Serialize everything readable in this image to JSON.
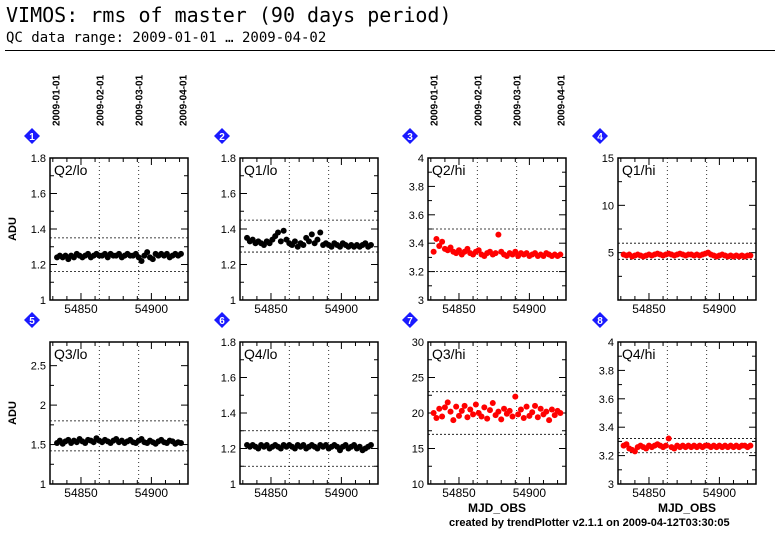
{
  "header": {
    "title": "VIMOS: rms of master (90 days period)",
    "subtitle": "QC data range: 2009-01-01 … 2009-04-02",
    "footer": "created by trendPlotter v2.1.1 on 2009-04-12T03:30:05"
  },
  "colors": {
    "series_lo": "#000000",
    "series_hi": "#ff0000",
    "badge": "#1a1aff"
  },
  "date_axis": {
    "labels": [
      "2009-01-01",
      "2009-02-01",
      "2009-03-01",
      "2009-04-01"
    ],
    "mjd": [
      54832,
      54863,
      54891,
      54922
    ]
  },
  "chart_data": [
    {
      "type": "scatter",
      "panel": "1",
      "label": "Q2/lo",
      "ylabel": "ADU",
      "xlabel": "",
      "xlim": [
        54828,
        54926
      ],
      "ylim": [
        1,
        1.8
      ],
      "xticks": [
        54850,
        54900
      ],
      "yticks": [
        1,
        1.2,
        1.4,
        1.6,
        1.8
      ],
      "yticklabels": [
        "1",
        "1.2",
        "1.4",
        "1.6",
        "1.8"
      ],
      "reflines": [
        1.16,
        1.35
      ],
      "color": "black",
      "x": [
        54833,
        54835,
        54837,
        54839,
        54841,
        54843,
        54845,
        54847,
        54849,
        54851,
        54853,
        54855,
        54857,
        54859,
        54861,
        54863,
        54865,
        54867,
        54869,
        54871,
        54873,
        54875,
        54877,
        54879,
        54881,
        54883,
        54885,
        54887,
        54889,
        54891,
        54893,
        54895,
        54897,
        54899,
        54901,
        54903,
        54905,
        54907,
        54909,
        54911,
        54913,
        54915,
        54917,
        54919,
        54921
      ],
      "y": [
        1.24,
        1.25,
        1.24,
        1.25,
        1.23,
        1.25,
        1.24,
        1.26,
        1.25,
        1.24,
        1.25,
        1.26,
        1.24,
        1.25,
        1.26,
        1.25,
        1.25,
        1.26,
        1.24,
        1.26,
        1.25,
        1.25,
        1.26,
        1.24,
        1.25,
        1.26,
        1.25,
        1.25,
        1.26,
        1.24,
        1.22,
        1.25,
        1.27,
        1.24,
        1.23,
        1.26,
        1.25,
        1.26,
        1.25,
        1.26,
        1.24,
        1.25,
        1.26,
        1.25,
        1.26
      ]
    },
    {
      "type": "scatter",
      "panel": "2",
      "label": "Q1/lo",
      "ylabel": "",
      "xlabel": "",
      "xlim": [
        54828,
        54926
      ],
      "ylim": [
        1,
        1.8
      ],
      "xticks": [
        54850,
        54900
      ],
      "yticks": [
        1,
        1.2,
        1.4,
        1.6,
        1.8
      ],
      "yticklabels": [
        "1",
        "1.2",
        "1.4",
        "1.6",
        "1.8"
      ],
      "reflines": [
        1.27,
        1.45
      ],
      "color": "black",
      "x": [
        54833,
        54835,
        54837,
        54839,
        54841,
        54843,
        54845,
        54847,
        54849,
        54851,
        54853,
        54855,
        54857,
        54859,
        54861,
        54863,
        54865,
        54867,
        54869,
        54871,
        54873,
        54875,
        54877,
        54879,
        54881,
        54883,
        54885,
        54887,
        54889,
        54891,
        54893,
        54895,
        54897,
        54899,
        54901,
        54903,
        54905,
        54907,
        54909,
        54911,
        54913,
        54915,
        54917,
        54919,
        54921
      ],
      "y": [
        1.35,
        1.33,
        1.34,
        1.32,
        1.33,
        1.32,
        1.31,
        1.33,
        1.32,
        1.34,
        1.36,
        1.38,
        1.33,
        1.39,
        1.34,
        1.32,
        1.31,
        1.33,
        1.3,
        1.32,
        1.31,
        1.35,
        1.33,
        1.37,
        1.32,
        1.34,
        1.38,
        1.31,
        1.32,
        1.31,
        1.3,
        1.32,
        1.31,
        1.3,
        1.32,
        1.31,
        1.3,
        1.31,
        1.3,
        1.31,
        1.3,
        1.31,
        1.32,
        1.3,
        1.31
      ]
    },
    {
      "type": "scatter",
      "panel": "3",
      "label": "Q2/hi",
      "ylabel": "",
      "xlabel": "",
      "xlim": [
        54828,
        54926
      ],
      "ylim": [
        3,
        4
      ],
      "xticks": [
        54850,
        54900
      ],
      "yticks": [
        3,
        3.2,
        3.4,
        3.6,
        3.8,
        4
      ],
      "yticklabels": [
        "3",
        "3.2",
        "3.4",
        "3.6",
        "3.8",
        "4"
      ],
      "reflines": [
        3.2,
        3.5
      ],
      "color": "red",
      "x": [
        54832,
        54834,
        54836,
        54838,
        54840,
        54842,
        54844,
        54846,
        54848,
        54850,
        54852,
        54854,
        54856,
        54858,
        54860,
        54862,
        54864,
        54866,
        54868,
        54870,
        54872,
        54874,
        54876,
        54878,
        54880,
        54882,
        54884,
        54886,
        54888,
        54890,
        54892,
        54894,
        54896,
        54898,
        54900,
        54902,
        54904,
        54906,
        54908,
        54910,
        54912,
        54914,
        54916,
        54918,
        54920,
        54922
      ],
      "y": [
        3.34,
        3.43,
        3.38,
        3.41,
        3.36,
        3.35,
        3.37,
        3.34,
        3.33,
        3.35,
        3.32,
        3.34,
        3.36,
        3.33,
        3.32,
        3.34,
        3.35,
        3.32,
        3.31,
        3.33,
        3.34,
        3.32,
        3.33,
        3.46,
        3.34,
        3.32,
        3.31,
        3.33,
        3.32,
        3.34,
        3.31,
        3.33,
        3.32,
        3.33,
        3.31,
        3.32,
        3.33,
        3.31,
        3.32,
        3.31,
        3.33,
        3.32,
        3.31,
        3.32,
        3.31,
        3.32
      ]
    },
    {
      "type": "scatter",
      "panel": "4",
      "label": "Q1/hi",
      "ylabel": "",
      "xlabel": "",
      "xlim": [
        54828,
        54926
      ],
      "ylim": [
        0,
        15
      ],
      "xticks": [
        54850,
        54900
      ],
      "yticks": [
        0,
        5,
        10,
        15
      ],
      "yticklabels": [
        "",
        "5",
        "10",
        "15"
      ],
      "reflines": [
        4.3,
        6.0
      ],
      "color": "red",
      "x": [
        54832,
        54834,
        54836,
        54838,
        54840,
        54842,
        54844,
        54846,
        54848,
        54850,
        54852,
        54854,
        54856,
        54858,
        54860,
        54862,
        54864,
        54866,
        54868,
        54870,
        54872,
        54874,
        54876,
        54878,
        54880,
        54882,
        54884,
        54886,
        54888,
        54890,
        54892,
        54894,
        54896,
        54898,
        54900,
        54902,
        54904,
        54906,
        54908,
        54910,
        54912,
        54914,
        54916,
        54918,
        54920,
        54922
      ],
      "y": [
        4.8,
        4.7,
        4.8,
        4.6,
        4.7,
        4.8,
        4.7,
        4.6,
        4.7,
        4.8,
        4.7,
        4.8,
        4.9,
        4.8,
        4.7,
        4.8,
        4.9,
        4.8,
        4.7,
        4.8,
        4.9,
        4.8,
        4.7,
        4.8,
        4.8,
        4.7,
        4.8,
        4.7,
        4.8,
        4.9,
        5.0,
        4.8,
        4.7,
        4.6,
        4.7,
        4.8,
        4.7,
        4.6,
        4.7,
        4.6,
        4.7,
        4.6,
        4.7,
        4.6,
        4.7,
        4.7
      ]
    },
    {
      "type": "scatter",
      "panel": "5",
      "label": "Q3/lo",
      "ylabel": "ADU",
      "xlabel": "",
      "xlim": [
        54828,
        54926
      ],
      "ylim": [
        1,
        2.8
      ],
      "xticks": [
        54850,
        54900
      ],
      "yticks": [
        1,
        1.5,
        2,
        2.5
      ],
      "yticklabels": [
        "1",
        "1.5",
        "2",
        "2.5"
      ],
      "reflines": [
        1.42,
        1.8
      ],
      "color": "black",
      "x": [
        54833,
        54835,
        54837,
        54839,
        54841,
        54843,
        54845,
        54847,
        54849,
        54851,
        54853,
        54855,
        54857,
        54859,
        54861,
        54863,
        54865,
        54867,
        54869,
        54871,
        54873,
        54875,
        54877,
        54879,
        54881,
        54883,
        54885,
        54887,
        54889,
        54891,
        54893,
        54895,
        54897,
        54899,
        54901,
        54903,
        54905,
        54907,
        54909,
        54911,
        54913,
        54915,
        54917,
        54919,
        54921
      ],
      "y": [
        1.52,
        1.55,
        1.51,
        1.54,
        1.56,
        1.52,
        1.55,
        1.53,
        1.57,
        1.54,
        1.52,
        1.56,
        1.55,
        1.53,
        1.58,
        1.55,
        1.53,
        1.56,
        1.54,
        1.52,
        1.55,
        1.57,
        1.53,
        1.55,
        1.52,
        1.54,
        1.56,
        1.53,
        1.52,
        1.55,
        1.57,
        1.53,
        1.52,
        1.55,
        1.53,
        1.51,
        1.54,
        1.56,
        1.53,
        1.52,
        1.55,
        1.54,
        1.51,
        1.53,
        1.52
      ]
    },
    {
      "type": "scatter",
      "panel": "6",
      "label": "Q4/lo",
      "ylabel": "",
      "xlabel": "",
      "xlim": [
        54828,
        54926
      ],
      "ylim": [
        1,
        1.8
      ],
      "xticks": [
        54850,
        54900
      ],
      "yticks": [
        1,
        1.2,
        1.4,
        1.6,
        1.8
      ],
      "yticklabels": [
        "1",
        "1.2",
        "1.4",
        "1.6",
        "1.8"
      ],
      "reflines": [
        1.1,
        1.3
      ],
      "color": "black",
      "x": [
        54833,
        54835,
        54837,
        54839,
        54841,
        54843,
        54845,
        54847,
        54849,
        54851,
        54853,
        54855,
        54857,
        54859,
        54861,
        54863,
        54865,
        54867,
        54869,
        54871,
        54873,
        54875,
        54877,
        54879,
        54881,
        54883,
        54885,
        54887,
        54889,
        54891,
        54893,
        54895,
        54897,
        54899,
        54901,
        54903,
        54905,
        54907,
        54909,
        54911,
        54913,
        54915,
        54917,
        54919,
        54921
      ],
      "y": [
        1.22,
        1.21,
        1.22,
        1.21,
        1.2,
        1.22,
        1.21,
        1.22,
        1.2,
        1.21,
        1.22,
        1.21,
        1.2,
        1.22,
        1.21,
        1.22,
        1.21,
        1.2,
        1.22,
        1.21,
        1.22,
        1.2,
        1.21,
        1.22,
        1.21,
        1.2,
        1.22,
        1.21,
        1.22,
        1.2,
        1.21,
        1.22,
        1.21,
        1.19,
        1.21,
        1.22,
        1.2,
        1.21,
        1.22,
        1.2,
        1.21,
        1.19,
        1.2,
        1.21,
        1.22
      ]
    },
    {
      "type": "scatter",
      "panel": "7",
      "label": "Q3/hi",
      "ylabel": "",
      "xlabel": "MJD_OBS",
      "xlim": [
        54828,
        54926
      ],
      "ylim": [
        10,
        30
      ],
      "xticks": [
        54850,
        54900
      ],
      "yticks": [
        10,
        15,
        20,
        25,
        30
      ],
      "yticklabels": [
        "10",
        "15",
        "20",
        "25",
        "30"
      ],
      "reflines": [
        17,
        23
      ],
      "color": "red",
      "x": [
        54832,
        54834,
        54836,
        54838,
        54840,
        54842,
        54844,
        54846,
        54848,
        54850,
        54852,
        54854,
        54856,
        54858,
        54860,
        54862,
        54864,
        54866,
        54868,
        54870,
        54872,
        54874,
        54876,
        54878,
        54880,
        54882,
        54884,
        54886,
        54888,
        54890,
        54892,
        54894,
        54896,
        54898,
        54900,
        54902,
        54904,
        54906,
        54908,
        54910,
        54912,
        54914,
        54916,
        54918,
        54920,
        54922
      ],
      "y": [
        20.0,
        19.3,
        20.6,
        19.5,
        20.8,
        21.5,
        20.2,
        19.0,
        20.9,
        19.6,
        20.3,
        21.0,
        19.4,
        20.5,
        19.8,
        21.2,
        20.0,
        19.5,
        20.8,
        19.2,
        20.4,
        21.4,
        19.7,
        20.2,
        19.1,
        20.6,
        19.9,
        20.3,
        19.5,
        22.3,
        19.8,
        20.5,
        19.3,
        20.9,
        19.6,
        20.1,
        21.0,
        19.4,
        20.6,
        19.8,
        20.2,
        19.0,
        20.5,
        19.7,
        20.3,
        20.0
      ]
    },
    {
      "type": "scatter",
      "panel": "8",
      "label": "Q4/hi",
      "ylabel": "",
      "xlabel": "MJD_OBS",
      "xlim": [
        54828,
        54926
      ],
      "ylim": [
        3,
        4
      ],
      "xticks": [
        54850,
        54900
      ],
      "yticks": [
        3,
        3.2,
        3.4,
        3.6,
        3.8,
        4
      ],
      "yticklabels": [
        "3",
        "3.2",
        "3.4",
        "3.6",
        "3.8",
        "4"
      ],
      "reflines": [
        3.22,
        3.32
      ],
      "color": "red",
      "x": [
        54832,
        54834,
        54836,
        54838,
        54840,
        54842,
        54844,
        54846,
        54848,
        54850,
        54852,
        54854,
        54856,
        54858,
        54860,
        54862,
        54864,
        54866,
        54868,
        54870,
        54872,
        54874,
        54876,
        54878,
        54880,
        54882,
        54884,
        54886,
        54888,
        54890,
        54892,
        54894,
        54896,
        54898,
        54900,
        54902,
        54904,
        54906,
        54908,
        54910,
        54912,
        54914,
        54916,
        54918,
        54920,
        54922
      ],
      "y": [
        3.27,
        3.28,
        3.25,
        3.24,
        3.23,
        3.26,
        3.27,
        3.26,
        3.25,
        3.27,
        3.26,
        3.27,
        3.28,
        3.27,
        3.26,
        3.27,
        3.32,
        3.26,
        3.25,
        3.27,
        3.26,
        3.27,
        3.26,
        3.27,
        3.26,
        3.27,
        3.26,
        3.27,
        3.26,
        3.27,
        3.27,
        3.26,
        3.27,
        3.26,
        3.27,
        3.26,
        3.27,
        3.26,
        3.27,
        3.26,
        3.27,
        3.26,
        3.27,
        3.27,
        3.26,
        3.27
      ]
    }
  ]
}
